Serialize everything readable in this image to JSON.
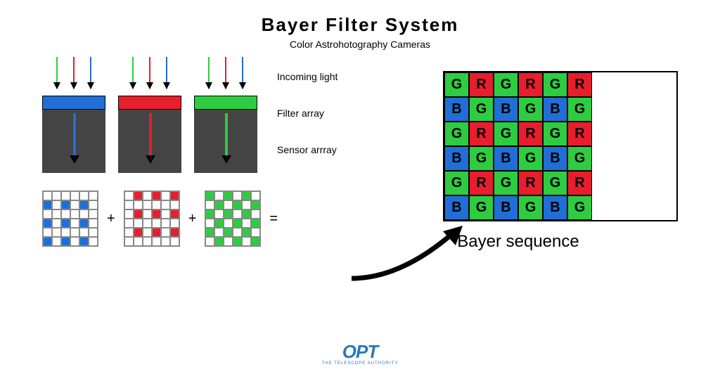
{
  "title": {
    "text": "Bayer Filter System",
    "fontsize": 26,
    "weight": 700
  },
  "subtitle": {
    "text": "Color Astrohotography Cameras",
    "fontsize": 14
  },
  "colors": {
    "green": "#2ecc40",
    "red": "#e91e2c",
    "blue": "#1f6fd6",
    "sensor_bg": "#444444",
    "background": "#ffffff",
    "black": "#000000",
    "grid_border": "#888888",
    "logo_blue": "#2a7ab8"
  },
  "labels": {
    "incoming": "Incoming light",
    "filter": "Filter array",
    "sensor": "Sensor arrray",
    "bayer": "Bayer sequence",
    "plus": "+",
    "equals": "="
  },
  "filter_units": [
    {
      "filter_color": "#1f6fd6",
      "pass_color": "#1f6fd6"
    },
    {
      "filter_color": "#e91e2c",
      "pass_color": "#e91e2c"
    },
    {
      "filter_color": "#2ecc40",
      "pass_color": "#2ecc40"
    }
  ],
  "incoming_arrows": [
    {
      "color": "#2ecc40",
      "x": 20
    },
    {
      "color": "#e91e2c",
      "x": 44
    },
    {
      "color": "#1f6fd6",
      "x": 68
    }
  ],
  "mini_grids": {
    "blue": [
      [
        0,
        0,
        0,
        0,
        0,
        0
      ],
      [
        1,
        0,
        1,
        0,
        1,
        0
      ],
      [
        0,
        0,
        0,
        0,
        0,
        0
      ],
      [
        1,
        0,
        1,
        0,
        1,
        0
      ],
      [
        0,
        0,
        0,
        0,
        0,
        0
      ],
      [
        1,
        0,
        1,
        0,
        1,
        0
      ]
    ],
    "red": [
      [
        0,
        1,
        0,
        1,
        0,
        1
      ],
      [
        0,
        0,
        0,
        0,
        0,
        0
      ],
      [
        0,
        1,
        0,
        1,
        0,
        1
      ],
      [
        0,
        0,
        0,
        0,
        0,
        0
      ],
      [
        0,
        1,
        0,
        1,
        0,
        1
      ],
      [
        0,
        0,
        0,
        0,
        0,
        0
      ]
    ],
    "green": [
      [
        1,
        0,
        1,
        0,
        1,
        0
      ],
      [
        0,
        1,
        0,
        1,
        0,
        1
      ],
      [
        1,
        0,
        1,
        0,
        1,
        0
      ],
      [
        0,
        1,
        0,
        1,
        0,
        1
      ],
      [
        1,
        0,
        1,
        0,
        1,
        0
      ],
      [
        0,
        1,
        0,
        1,
        0,
        1
      ]
    ]
  },
  "bayer_grid": [
    [
      "G",
      "R",
      "G",
      "R",
      "G",
      "R"
    ],
    [
      "B",
      "G",
      "B",
      "G",
      "B",
      "G"
    ],
    [
      "G",
      "R",
      "G",
      "R",
      "G",
      "R"
    ],
    [
      "B",
      "G",
      "B",
      "G",
      "B",
      "G"
    ],
    [
      "G",
      "R",
      "G",
      "R",
      "G",
      "R"
    ],
    [
      "B",
      "G",
      "B",
      "G",
      "B",
      "G"
    ]
  ],
  "bayer_cell_colors": {
    "G": "#2ecc40",
    "R": "#e91e2c",
    "B": "#1f6fd6"
  },
  "logo": {
    "text": "OPT",
    "tagline": "THE TELESCOPE AUTHORITY",
    "color": "#2a7ab8"
  }
}
